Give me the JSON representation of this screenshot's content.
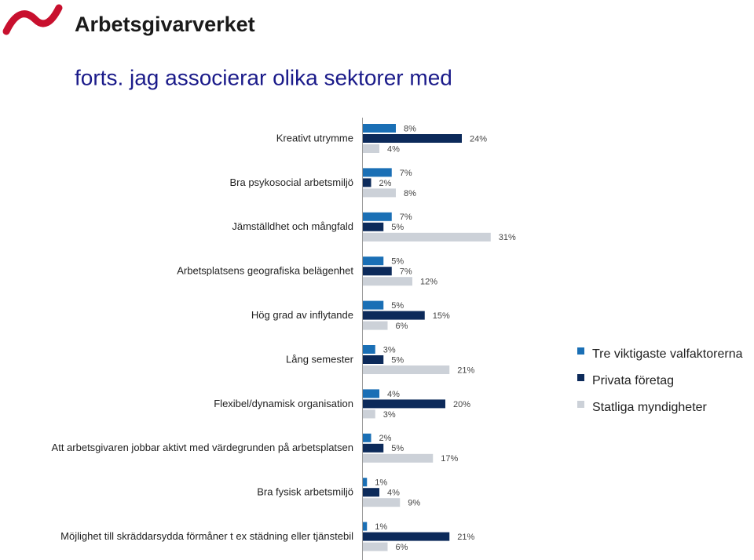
{
  "header": {
    "brand": "Arbetsgivarverket"
  },
  "chart_data": {
    "type": "barh",
    "title": "forts. jag associerar olika sektorer med",
    "categories": [
      "Kreativt utrymme",
      "Bra psykosocial arbetsmiljö",
      "Jämställdhet och mångfald",
      "Arbetsplatsens geografiska belägenhet",
      "Hög grad av inflytande",
      "Lång semester",
      "Flexibel/dynamisk organisation",
      "Att arbetsgivaren jobbar aktivt med värdegrunden på arbetsplatsen",
      "Bra fysisk arbetsmiljö",
      "Möjlighet till skräddarsydda förmåner t ex städning eller tjänstebil"
    ],
    "series": [
      {
        "name": "Tre viktigaste valfaktorerna",
        "color": "#1a6fb5",
        "values": [
          8,
          7,
          7,
          5,
          5,
          3,
          4,
          2,
          1,
          1
        ],
        "value_labels": [
          "8%",
          "7%",
          "7%",
          "5%",
          "5%",
          "3%",
          "4%",
          "2%",
          "1%",
          "1%"
        ]
      },
      {
        "name": "Privata företag",
        "color": "#0c2a5a",
        "values": [
          24,
          2,
          5,
          7,
          15,
          5,
          20,
          5,
          4,
          21
        ],
        "value_labels": [
          "24%",
          "2%",
          "5%",
          "7%",
          "15%",
          "5%",
          "20%",
          "5%",
          "4%",
          "21%"
        ]
      },
      {
        "name": "Statliga myndigheter",
        "color": "#ccd1d8",
        "values": [
          4,
          8,
          31,
          12,
          6,
          21,
          3,
          17,
          9,
          6
        ],
        "value_labels": [
          "4%",
          "8%",
          "31%",
          "12%",
          "6%",
          "21%",
          "3%",
          "17%",
          "9%",
          "6%"
        ]
      }
    ]
  }
}
